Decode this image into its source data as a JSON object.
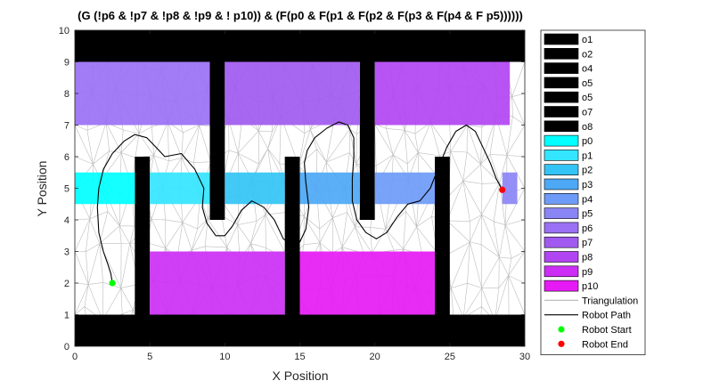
{
  "chart_data": {
    "type": "line",
    "title": "(G (!p6 & !p7 & !p8 & !p9 & ! p10)) & (F(p0 & F(p1 & F(p2 & F(p3 & F(p4 & F p5))))))",
    "xlabel": "X Position",
    "ylabel": "Y Position",
    "xlim": [
      0,
      30
    ],
    "ylim": [
      0,
      10
    ],
    "xticks": [
      0,
      5,
      10,
      15,
      20,
      25,
      30
    ],
    "yticks": [
      0,
      1,
      2,
      3,
      4,
      5,
      6,
      7,
      8,
      9,
      10
    ],
    "grid": false,
    "legend_position": "outside-right",
    "regions": [
      {
        "name": "o1",
        "color": "#000000",
        "rect": [
          0,
          9,
          30,
          10
        ]
      },
      {
        "name": "o2",
        "color": "#000000",
        "rect": [
          0,
          0,
          30,
          1
        ]
      },
      {
        "name": "o4",
        "color": "#000000",
        "rect": [
          4,
          0,
          5,
          6
        ]
      },
      {
        "name": "o5",
        "color": "#000000",
        "rect": [
          14,
          0,
          15,
          6
        ]
      },
      {
        "name": "o5",
        "color": "#000000",
        "rect": [
          24,
          0,
          25,
          6
        ]
      },
      {
        "name": "o7",
        "color": "#000000",
        "rect": [
          9,
          4,
          10,
          10
        ]
      },
      {
        "name": "o8",
        "color": "#000000",
        "rect": [
          19,
          4,
          20,
          10
        ]
      },
      {
        "name": "p0",
        "color": "#00FFFF",
        "rect": [
          0,
          4.5,
          4,
          5.5
        ]
      },
      {
        "name": "p1",
        "color": "#33E5FF",
        "rect": [
          5,
          4.5,
          9,
          5.5
        ]
      },
      {
        "name": "p2",
        "color": "#33C4F5",
        "rect": [
          10,
          4.5,
          14,
          5.5
        ]
      },
      {
        "name": "p3",
        "color": "#4DA8F5",
        "rect": [
          15,
          4.5,
          19,
          5.5
        ]
      },
      {
        "name": "p4",
        "color": "#6E9BF7",
        "rect": [
          20,
          4.5,
          24,
          5.5
        ]
      },
      {
        "name": "p5",
        "color": "#8A85F5",
        "rect": [
          28.5,
          4.5,
          29.5,
          5.5
        ]
      },
      {
        "name": "p6",
        "color": "#9A70F5",
        "rect": [
          0,
          7,
          9,
          9
        ]
      },
      {
        "name": "p7",
        "color": "#A15AF0",
        "rect": [
          10,
          7,
          19,
          9
        ]
      },
      {
        "name": "p8",
        "color": "#B245F2",
        "rect": [
          20,
          7,
          29,
          9
        ]
      },
      {
        "name": "p9",
        "color": "#CC2EF5",
        "rect": [
          5,
          1,
          14,
          3
        ]
      },
      {
        "name": "p10",
        "color": "#E61AF5",
        "rect": [
          15,
          1,
          24,
          3
        ]
      }
    ],
    "legend": [
      {
        "label": "o1",
        "kind": "patch",
        "color": "#000000"
      },
      {
        "label": "o2",
        "kind": "patch",
        "color": "#000000"
      },
      {
        "label": "o4",
        "kind": "patch",
        "color": "#000000"
      },
      {
        "label": "o5",
        "kind": "patch",
        "color": "#000000"
      },
      {
        "label": "o5",
        "kind": "patch",
        "color": "#000000"
      },
      {
        "label": "o7",
        "kind": "patch",
        "color": "#000000"
      },
      {
        "label": "o8",
        "kind": "patch",
        "color": "#000000"
      },
      {
        "label": "p0",
        "kind": "patch",
        "color": "#00FFFF"
      },
      {
        "label": "p1",
        "kind": "patch",
        "color": "#33E5FF"
      },
      {
        "label": "p2",
        "kind": "patch",
        "color": "#33C4F5"
      },
      {
        "label": "p3",
        "kind": "patch",
        "color": "#4DA8F5"
      },
      {
        "label": "p4",
        "kind": "patch",
        "color": "#6E9BF7"
      },
      {
        "label": "p5",
        "kind": "patch",
        "color": "#8A85F5"
      },
      {
        "label": "p6",
        "kind": "patch",
        "color": "#9A70F5"
      },
      {
        "label": "p7",
        "kind": "patch",
        "color": "#A15AF0"
      },
      {
        "label": "p8",
        "kind": "patch",
        "color": "#B245F2"
      },
      {
        "label": "p9",
        "kind": "patch",
        "color": "#CC2EF5"
      },
      {
        "label": "p10",
        "kind": "patch",
        "color": "#E61AF5"
      },
      {
        "label": "Triangulation",
        "kind": "line",
        "color": "#BDBDBD"
      },
      {
        "label": "Robot Path",
        "kind": "line",
        "color": "#000000"
      },
      {
        "label": "Robot Start",
        "kind": "dot",
        "color": "#00FF00"
      },
      {
        "label": "Robot End",
        "kind": "dot",
        "color": "#FF0000"
      }
    ],
    "series": [
      {
        "name": "Robot Path",
        "color": "#000000",
        "points": [
          [
            2.5,
            2.0
          ],
          [
            2.4,
            2.3
          ],
          [
            2.2,
            2.6
          ],
          [
            1.9,
            3.0
          ],
          [
            1.6,
            3.6
          ],
          [
            1.5,
            4.4
          ],
          [
            1.6,
            5.0
          ],
          [
            1.9,
            5.6
          ],
          [
            2.5,
            6.1
          ],
          [
            3.3,
            6.5
          ],
          [
            4.0,
            6.7
          ],
          [
            4.8,
            6.6
          ],
          [
            5.4,
            6.3
          ],
          [
            6.0,
            6.0
          ],
          [
            7.1,
            6.1
          ],
          [
            8.0,
            5.6
          ],
          [
            8.6,
            5.0
          ],
          [
            8.5,
            4.4
          ],
          [
            8.8,
            3.9
          ],
          [
            9.4,
            3.5
          ],
          [
            10.0,
            3.5
          ],
          [
            10.5,
            3.8
          ],
          [
            11.1,
            4.3
          ],
          [
            11.8,
            4.6
          ],
          [
            12.6,
            4.4
          ],
          [
            13.3,
            4.0
          ],
          [
            13.9,
            3.4
          ],
          [
            14.5,
            3.2
          ],
          [
            15.0,
            3.3
          ],
          [
            15.4,
            3.7
          ],
          [
            15.6,
            4.4
          ],
          [
            15.4,
            5.2
          ],
          [
            15.3,
            5.8
          ],
          [
            15.5,
            6.2
          ],
          [
            16.0,
            6.6
          ],
          [
            16.8,
            6.9
          ],
          [
            17.6,
            7.1
          ],
          [
            18.2,
            7.0
          ],
          [
            18.6,
            6.6
          ],
          [
            18.6,
            6.0
          ],
          [
            18.5,
            5.3
          ],
          [
            18.5,
            4.6
          ],
          [
            18.8,
            4.0
          ],
          [
            19.4,
            3.6
          ],
          [
            20.1,
            3.4
          ],
          [
            20.8,
            3.6
          ],
          [
            21.5,
            4.1
          ],
          [
            22.2,
            4.5
          ],
          [
            23.0,
            4.6
          ],
          [
            23.7,
            5.0
          ],
          [
            24.2,
            5.6
          ],
          [
            24.8,
            6.3
          ],
          [
            25.4,
            6.8
          ],
          [
            26.1,
            7.0
          ],
          [
            26.7,
            6.8
          ],
          [
            27.2,
            6.3
          ],
          [
            27.7,
            5.8
          ],
          [
            28.1,
            5.3
          ],
          [
            28.5,
            4.95
          ]
        ]
      }
    ],
    "start": [
      2.5,
      2.0
    ],
    "end": [
      28.5,
      4.95
    ]
  }
}
